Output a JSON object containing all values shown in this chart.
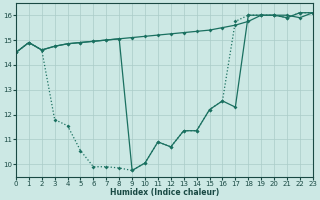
{
  "background_color": "#cce8e4",
  "grid_color": "#aaccc8",
  "line_color": "#1a7060",
  "xlabel": "Humidex (Indice chaleur)",
  "xlim": [
    0,
    23
  ],
  "ylim": [
    9.5,
    16.5
  ],
  "yticks": [
    10,
    11,
    12,
    13,
    14,
    15,
    16
  ],
  "xticks": [
    0,
    1,
    2,
    3,
    4,
    5,
    6,
    7,
    8,
    9,
    10,
    11,
    12,
    13,
    14,
    15,
    16,
    17,
    18,
    19,
    20,
    21,
    22,
    23
  ],
  "line1_x": [
    0,
    1,
    2,
    3,
    4,
    5,
    6,
    7,
    8,
    9,
    10,
    11,
    12,
    13,
    14,
    15,
    16,
    17,
    18,
    19,
    20,
    21,
    22,
    23
  ],
  "line1_y": [
    14.5,
    14.9,
    14.6,
    14.75,
    14.85,
    14.9,
    14.95,
    15.0,
    15.05,
    15.1,
    15.15,
    15.2,
    15.25,
    15.3,
    15.35,
    15.4,
    15.5,
    15.6,
    15.75,
    16.0,
    16.0,
    16.0,
    15.9,
    16.1
  ],
  "line1_ls": "solid",
  "line2_x": [
    0,
    1,
    2,
    3,
    4,
    5,
    6,
    7,
    8,
    9,
    10,
    11,
    12,
    13,
    14,
    15,
    16,
    17,
    18,
    19,
    20,
    21,
    22,
    23
  ],
  "line2_y": [
    14.5,
    14.9,
    14.6,
    11.8,
    11.55,
    10.55,
    9.9,
    9.9,
    9.85,
    9.75,
    10.05,
    10.9,
    10.7,
    11.35,
    11.35,
    12.2,
    12.55,
    15.75,
    16.0,
    16.0,
    16.0,
    15.9,
    16.1,
    16.1
  ],
  "line2_ls": "dotted",
  "line3_x": [
    0,
    1,
    2,
    3,
    4,
    5,
    6,
    7,
    8,
    9,
    10,
    11,
    12,
    13,
    14,
    15,
    16,
    17,
    18,
    19,
    20,
    21,
    22,
    23
  ],
  "line3_y": [
    14.5,
    14.9,
    14.6,
    14.75,
    14.85,
    14.9,
    14.95,
    15.0,
    15.05,
    9.75,
    10.05,
    10.9,
    10.7,
    11.35,
    11.35,
    12.2,
    12.55,
    12.3,
    16.0,
    16.0,
    16.0,
    15.9,
    16.1,
    16.1
  ],
  "line3_ls": "solid"
}
